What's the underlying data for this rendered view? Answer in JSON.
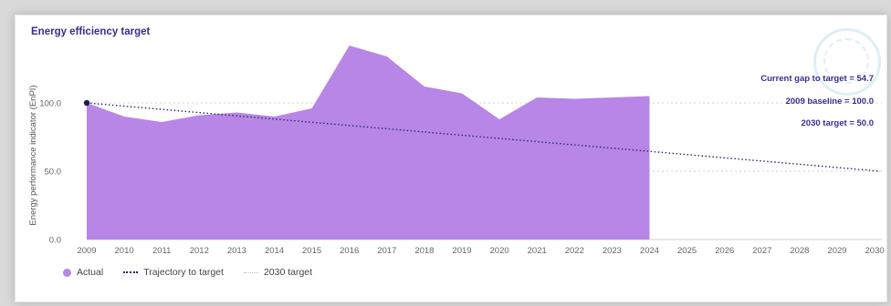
{
  "title": "Energy efficiency target",
  "annotations": {
    "gap": "Current gap to target = 54.7",
    "baseline": "2009 baseline = 100.0",
    "target": "2030 target = 50.0"
  },
  "legend": {
    "actual": "Actual",
    "trajectory": "Trajectory to target",
    "target": "2030 target"
  },
  "colors": {
    "area": "#b886e6",
    "trajectory": "#2a2a6a",
    "gridline": "#d0d0d0",
    "title": "#3d2b91",
    "annotation": "#3d2b91",
    "axis_text": "#666666"
  },
  "chart_data": {
    "type": "area",
    "title": "Energy efficiency target",
    "ylabel": "Energy performance indicator (EnPI)",
    "xlabel": "",
    "x": [
      "2009",
      "2010",
      "2011",
      "2012",
      "2013",
      "2014",
      "2015",
      "2016",
      "2017",
      "2018",
      "2019",
      "2020",
      "2021",
      "2022",
      "2023",
      "2024",
      "2025",
      "2026",
      "2027",
      "2028",
      "2029",
      "2030"
    ],
    "ylim": [
      0,
      150
    ],
    "yticks": [
      "0.0",
      "50.0",
      "100.0"
    ],
    "series": [
      {
        "name": "Actual",
        "x": [
          "2009",
          "2010",
          "2011",
          "2012",
          "2013",
          "2014",
          "2015",
          "2016",
          "2017",
          "2018",
          "2019",
          "2020",
          "2021",
          "2022",
          "2023",
          "2024"
        ],
        "values": [
          100,
          90,
          86,
          91,
          93,
          90,
          96,
          142,
          134,
          112,
          107,
          88,
          104,
          103,
          104,
          105
        ]
      },
      {
        "name": "Trajectory to target",
        "x": [
          "2009",
          "2030"
        ],
        "values": [
          100,
          50
        ]
      },
      {
        "name": "2030 target",
        "value": 50
      }
    ],
    "baseline_reference": 100,
    "legend_position": "bottom-left",
    "grid": true
  }
}
